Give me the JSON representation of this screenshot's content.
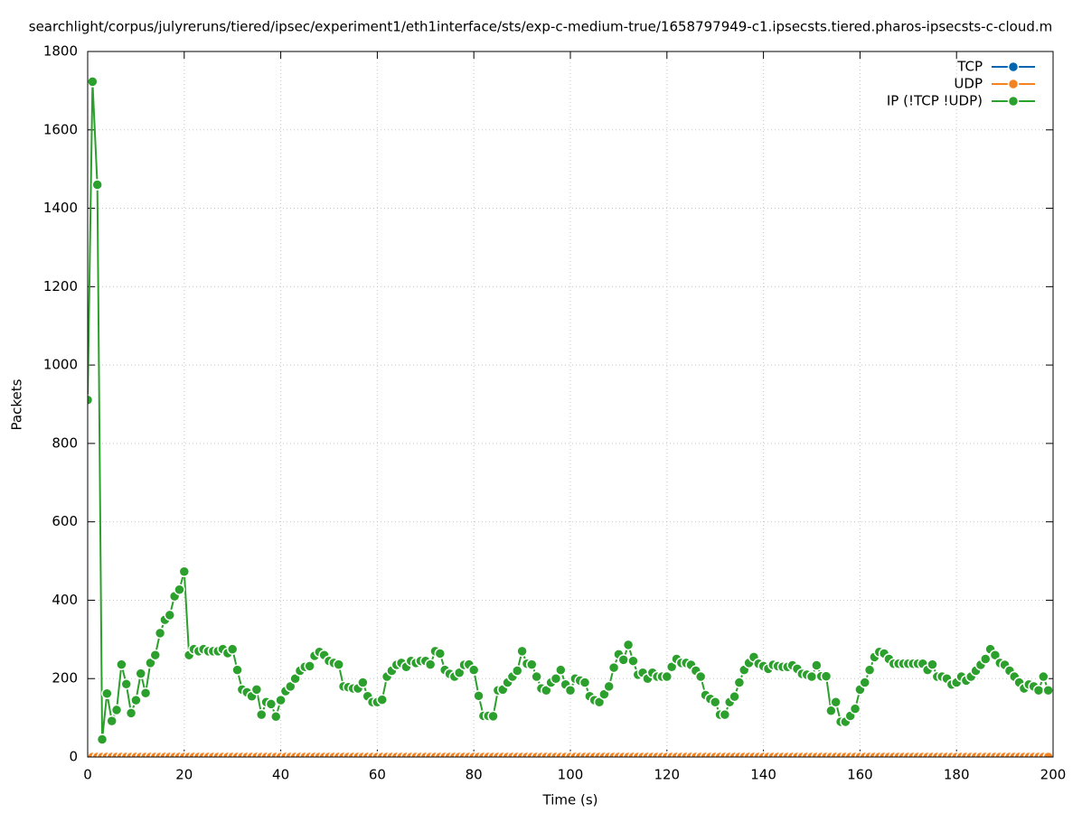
{
  "chart_data": {
    "type": "line",
    "title": "searchlight/corpus/julyreruns/tiered/ipsec/experiment1/eth1interface/sts/exp-c-medium-true/1658797949-c1.ipsecsts.tiered.pharos-ipsecsts-c-cloud.m",
    "xlabel": "Time (s)",
    "ylabel": "Packets",
    "xlim": [
      0,
      200
    ],
    "xticks": [
      0,
      20,
      40,
      60,
      80,
      100,
      120,
      140,
      160,
      180,
      200
    ],
    "ylim": [
      0,
      1800
    ],
    "yticks": [
      0,
      200,
      400,
      600,
      800,
      1000,
      1200,
      1400,
      1600,
      1800
    ],
    "grid": true,
    "legend": "top-right",
    "x": [
      0,
      1,
      2,
      3,
      4,
      5,
      6,
      7,
      8,
      9,
      10,
      11,
      12,
      13,
      14,
      15,
      16,
      17,
      18,
      19,
      20,
      21,
      22,
      23,
      24,
      25,
      26,
      27,
      28,
      29,
      30,
      31,
      32,
      33,
      34,
      35,
      36,
      37,
      38,
      39,
      40,
      41,
      42,
      43,
      44,
      45,
      46,
      47,
      48,
      49,
      50,
      51,
      52,
      53,
      54,
      55,
      56,
      57,
      58,
      59,
      60,
      61,
      62,
      63,
      64,
      65,
      66,
      67,
      68,
      69,
      70,
      71,
      72,
      73,
      74,
      75,
      76,
      77,
      78,
      79,
      80,
      81,
      82,
      83,
      84,
      85,
      86,
      87,
      88,
      89,
      90,
      91,
      92,
      93,
      94,
      95,
      96,
      97,
      98,
      99,
      100,
      101,
      102,
      103,
      104,
      105,
      106,
      107,
      108,
      109,
      110,
      111,
      112,
      113,
      114,
      115,
      116,
      117,
      118,
      119,
      120,
      121,
      122,
      123,
      124,
      125,
      126,
      127,
      128,
      129,
      130,
      131,
      132,
      133,
      134,
      135,
      136,
      137,
      138,
      139,
      140,
      141,
      142,
      143,
      144,
      145,
      146,
      147,
      148,
      149,
      150,
      151,
      152,
      153,
      154,
      155,
      156,
      157,
      158,
      159,
      160,
      161,
      162,
      163,
      164,
      165,
      166,
      167,
      168,
      169,
      170,
      171,
      172,
      173,
      174,
      175,
      176,
      177,
      178,
      179,
      180,
      181,
      182,
      183,
      184,
      185,
      186,
      187,
      188,
      189,
      190,
      191,
      192,
      193,
      194,
      195,
      196,
      197,
      198,
      199
    ],
    "series": [
      {
        "name": "TCP",
        "color": "#0064b0",
        "values": [
          0,
          0,
          0,
          0,
          0,
          0,
          0,
          0,
          0,
          0,
          0,
          0,
          0,
          0,
          0,
          0,
          0,
          0,
          0,
          0,
          0,
          0,
          0,
          0,
          0,
          0,
          0,
          0,
          0,
          0,
          0,
          0,
          0,
          0,
          0,
          0,
          0,
          0,
          0,
          0,
          0,
          0,
          0,
          0,
          0,
          0,
          0,
          0,
          0,
          0,
          0,
          0,
          0,
          0,
          0,
          0,
          0,
          0,
          0,
          0,
          0,
          0,
          0,
          0,
          0,
          0,
          0,
          0,
          0,
          0,
          0,
          0,
          0,
          0,
          0,
          0,
          0,
          0,
          0,
          0,
          0,
          0,
          0,
          0,
          0,
          0,
          0,
          0,
          0,
          0,
          0,
          0,
          0,
          0,
          0,
          0,
          0,
          0,
          0,
          0,
          0,
          0,
          0,
          0,
          0,
          0,
          0,
          0,
          0,
          0,
          0,
          0,
          0,
          0,
          0,
          0,
          0,
          0,
          0,
          0,
          0,
          0,
          0,
          0,
          0,
          0,
          0,
          0,
          0,
          0,
          0,
          0,
          0,
          0,
          0,
          0,
          0,
          0,
          0,
          0,
          0,
          0,
          0,
          0,
          0,
          0,
          0,
          0,
          0,
          0,
          0,
          0,
          0,
          0,
          0,
          0,
          0,
          0,
          0,
          0,
          0,
          0,
          0,
          0,
          0,
          0,
          0,
          0,
          0,
          0,
          0,
          0,
          0,
          0,
          0,
          0,
          0,
          0,
          0,
          0,
          0,
          0,
          0,
          0,
          0,
          0,
          0,
          0,
          0,
          0,
          0,
          0,
          0,
          0,
          0,
          0,
          0,
          0,
          0,
          0
        ]
      },
      {
        "name": "UDP",
        "color": "#f58220",
        "values": [
          0,
          0,
          0,
          0,
          0,
          0,
          0,
          0,
          0,
          0,
          0,
          0,
          0,
          0,
          0,
          0,
          0,
          0,
          0,
          0,
          0,
          0,
          0,
          0,
          0,
          0,
          0,
          0,
          0,
          0,
          0,
          0,
          0,
          0,
          0,
          0,
          0,
          0,
          0,
          0,
          0,
          0,
          0,
          0,
          0,
          0,
          0,
          0,
          0,
          0,
          0,
          0,
          0,
          0,
          0,
          0,
          0,
          0,
          0,
          0,
          0,
          0,
          0,
          0,
          0,
          0,
          0,
          0,
          0,
          0,
          0,
          0,
          0,
          0,
          0,
          0,
          0,
          0,
          0,
          0,
          0,
          0,
          0,
          0,
          0,
          0,
          0,
          0,
          0,
          0,
          0,
          0,
          0,
          0,
          0,
          0,
          0,
          0,
          0,
          0,
          0,
          0,
          0,
          0,
          0,
          0,
          0,
          0,
          0,
          0,
          0,
          0,
          0,
          0,
          0,
          0,
          0,
          0,
          0,
          0,
          0,
          0,
          0,
          0,
          0,
          0,
          0,
          0,
          0,
          0,
          0,
          0,
          0,
          0,
          0,
          0,
          0,
          0,
          0,
          0,
          0,
          0,
          0,
          0,
          0,
          0,
          0,
          0,
          0,
          0,
          0,
          0,
          0,
          0,
          0,
          0,
          0,
          0,
          0,
          0,
          0,
          0,
          0,
          0,
          0,
          0,
          0,
          0,
          0,
          0,
          0,
          0,
          0,
          0,
          0,
          0,
          0,
          0,
          0,
          0,
          0,
          0,
          0,
          0,
          0,
          0,
          0,
          0,
          0,
          0,
          0,
          0,
          0,
          0,
          0,
          0,
          0,
          0,
          0,
          0
        ]
      },
      {
        "name": "IP (!TCP  !UDP)",
        "color": "#2ca02c",
        "values": [
          911,
          1723,
          1460,
          45,
          162,
          92,
          120,
          236,
          186,
          112,
          145,
          213,
          163,
          240,
          260,
          316,
          350,
          362,
          410,
          427,
          473,
          260,
          275,
          270,
          275,
          270,
          270,
          270,
          275,
          265,
          275,
          222,
          172,
          165,
          155,
          172,
          108,
          140,
          135,
          103,
          145,
          168,
          180,
          200,
          220,
          230,
          232,
          258,
          268,
          260,
          245,
          240,
          236,
          180,
          178,
          175,
          175,
          190,
          155,
          140,
          140,
          146,
          205,
          220,
          235,
          240,
          230,
          245,
          240,
          245,
          245,
          236,
          270,
          264,
          222,
          212,
          205,
          215,
          235,
          236,
          222,
          156,
          105,
          105,
          104,
          170,
          172,
          190,
          205,
          220,
          270,
          238,
          236,
          205,
          175,
          170,
          190,
          200,
          222,
          185,
          170,
          200,
          195,
          190,
          155,
          145,
          140,
          160,
          180,
          228,
          262,
          248,
          286,
          245,
          210,
          215,
          200,
          215,
          205,
          205,
          205,
          230,
          250,
          240,
          240,
          235,
          220,
          205,
          158,
          148,
          140,
          108,
          108,
          140,
          154,
          190,
          222,
          240,
          255,
          238,
          232,
          225,
          235,
          232,
          230,
          230,
          234,
          225,
          212,
          210,
          205,
          234,
          206,
          206,
          118,
          140,
          90,
          90,
          105,
          123,
          172,
          190,
          222,
          255,
          268,
          264,
          250,
          238,
          238,
          238,
          238,
          238,
          238,
          238,
          222,
          236,
          205,
          205,
          200,
          185,
          190,
          205,
          195,
          205,
          220,
          235,
          250,
          275,
          260,
          240,
          235,
          220,
          205,
          190,
          175,
          185,
          180,
          170,
          205,
          170
        ]
      }
    ]
  }
}
